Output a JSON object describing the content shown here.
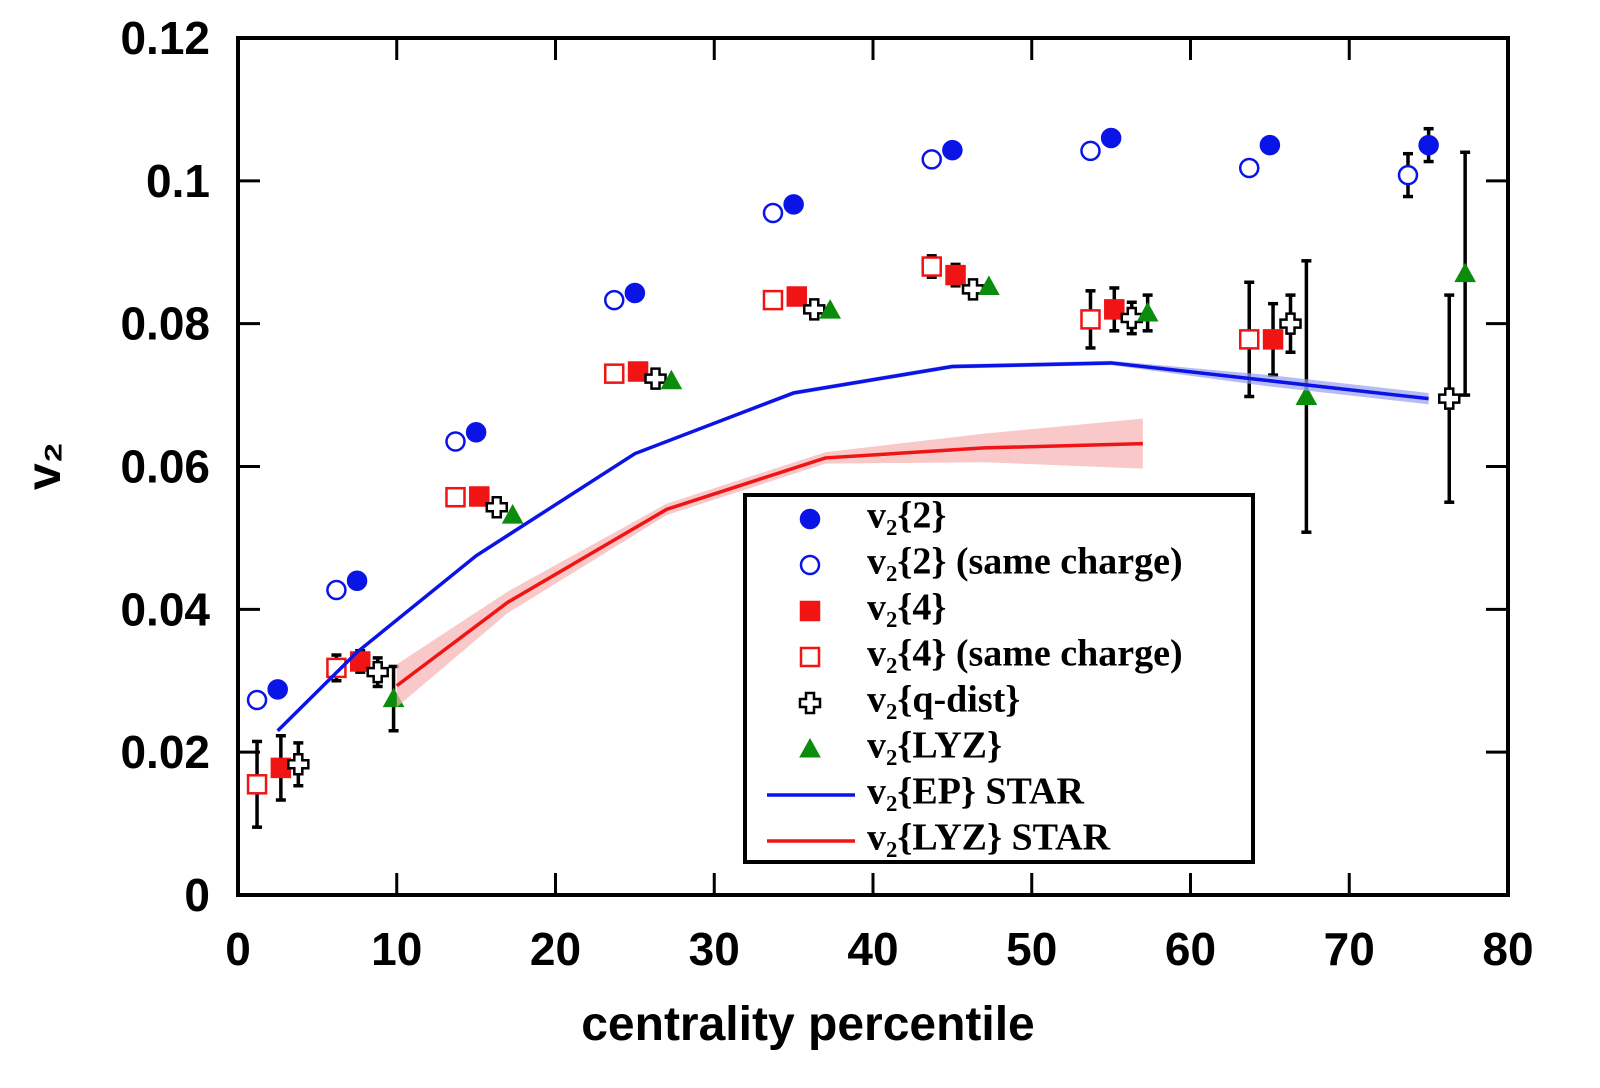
{
  "chart_data": {
    "type": "scatter",
    "xlabel": "centrality percentile",
    "ylabel": "v₂",
    "xlim": [
      0,
      80
    ],
    "ylim": [
      0,
      0.12
    ],
    "xticks": [
      0,
      10,
      20,
      30,
      40,
      50,
      60,
      70,
      80
    ],
    "yticks": [
      0,
      0.02,
      0.04,
      0.06,
      0.08,
      0.1,
      0.12
    ],
    "legend": "lower right",
    "series": [
      {
        "name": "v₂{2}",
        "type": "scatter",
        "marker": "circle",
        "filled": true,
        "color": "#0a14e6",
        "x": [
          2.5,
          7.5,
          15,
          25,
          35,
          45,
          55,
          65,
          75
        ],
        "values": [
          0.0288,
          0.044,
          0.0648,
          0.0843,
          0.0967,
          0.1043,
          0.106,
          0.105,
          0.105
        ],
        "errors": [
          null,
          null,
          null,
          null,
          null,
          null,
          null,
          null,
          0.0023
        ]
      },
      {
        "name": "v₂{2} (same charge)",
        "type": "scatter",
        "marker": "circle",
        "filled": false,
        "color": "#0a14e6",
        "x": [
          1.2,
          6.2,
          13.7,
          23.7,
          33.7,
          43.7,
          53.7,
          63.7,
          73.7
        ],
        "values": [
          0.0273,
          0.0427,
          0.0635,
          0.0833,
          0.0955,
          0.103,
          0.1042,
          0.1018,
          0.1008
        ],
        "errors": [
          null,
          null,
          null,
          null,
          null,
          null,
          null,
          null,
          0.003
        ]
      },
      {
        "name": "v₂{4}",
        "type": "scatter",
        "marker": "square",
        "filled": true,
        "color": "#f01414",
        "x": [
          2.7,
          7.7,
          15.2,
          25.2,
          35.2,
          45.2,
          55.2,
          65.2
        ],
        "values": [
          0.0178,
          0.0327,
          0.0558,
          0.0733,
          0.0838,
          0.0868,
          0.082,
          0.0778
        ],
        "errors": [
          0.0045,
          0.0015,
          null,
          null,
          null,
          0.0015,
          0.003,
          0.005
        ]
      },
      {
        "name": "v₂{4} (same charge)",
        "type": "scatter",
        "marker": "square",
        "filled": false,
        "color": "#f01414",
        "x": [
          1.2,
          6.2,
          13.7,
          23.7,
          33.7,
          43.7,
          53.7,
          63.7
        ],
        "values": [
          0.0155,
          0.0318,
          0.0557,
          0.073,
          0.0833,
          0.088,
          0.0806,
          0.0778
        ],
        "errors": [
          0.006,
          0.0018,
          null,
          null,
          null,
          0.0015,
          0.004,
          0.008
        ]
      },
      {
        "name": "v₂{q-dist}",
        "type": "scatter",
        "marker": "cross",
        "filled": false,
        "color": "#000000",
        "x": [
          3.8,
          8.8,
          16.3,
          26.3,
          36.3,
          46.3,
          56.3,
          66.3,
          76.3
        ],
        "values": [
          0.0183,
          0.0312,
          0.0543,
          0.0723,
          0.082,
          0.0848,
          0.0808,
          0.08,
          0.0695
        ],
        "errors": [
          0.003,
          0.002,
          null,
          null,
          null,
          null,
          0.0022,
          0.004,
          0.0145
        ]
      },
      {
        "name": "v₂{LYZ}",
        "type": "scatter",
        "marker": "triangle",
        "filled": true,
        "color": "#0c8c0c",
        "x": [
          9.8,
          17.3,
          27.3,
          37.3,
          47.3,
          57.3,
          67.3,
          77.3
        ],
        "values": [
          0.0275,
          0.0532,
          0.072,
          0.0819,
          0.0852,
          0.0815,
          0.0698,
          0.087
        ],
        "errors": [
          0.0045,
          null,
          null,
          null,
          null,
          0.0025,
          0.019,
          0.017
        ]
      },
      {
        "name": "v₂{EP} STAR",
        "type": "line",
        "color": "#0a14e6",
        "band_color": "#9aa0f0",
        "x": [
          2.5,
          7.5,
          15,
          25,
          35,
          45,
          55,
          65,
          75
        ],
        "values": [
          0.023,
          0.034,
          0.0475,
          0.0618,
          0.0703,
          0.074,
          0.0745,
          0.072,
          0.0695
        ],
        "band": [
          0.0002,
          0.0002,
          0.0002,
          0.0002,
          0.0003,
          0.0003,
          0.0003,
          0.0008,
          0.0008
        ]
      },
      {
        "name": "v₂{LYZ} STAR",
        "type": "line",
        "color": "#f01414",
        "band_color": "#f6b0b0",
        "x": [
          10,
          17,
          27,
          37,
          47,
          57
        ],
        "values": [
          0.0293,
          0.041,
          0.054,
          0.0612,
          0.0626,
          0.0632
        ],
        "band": [
          0.003,
          0.0015,
          0.0008,
          0.0008,
          0.002,
          0.0035
        ]
      }
    ]
  }
}
